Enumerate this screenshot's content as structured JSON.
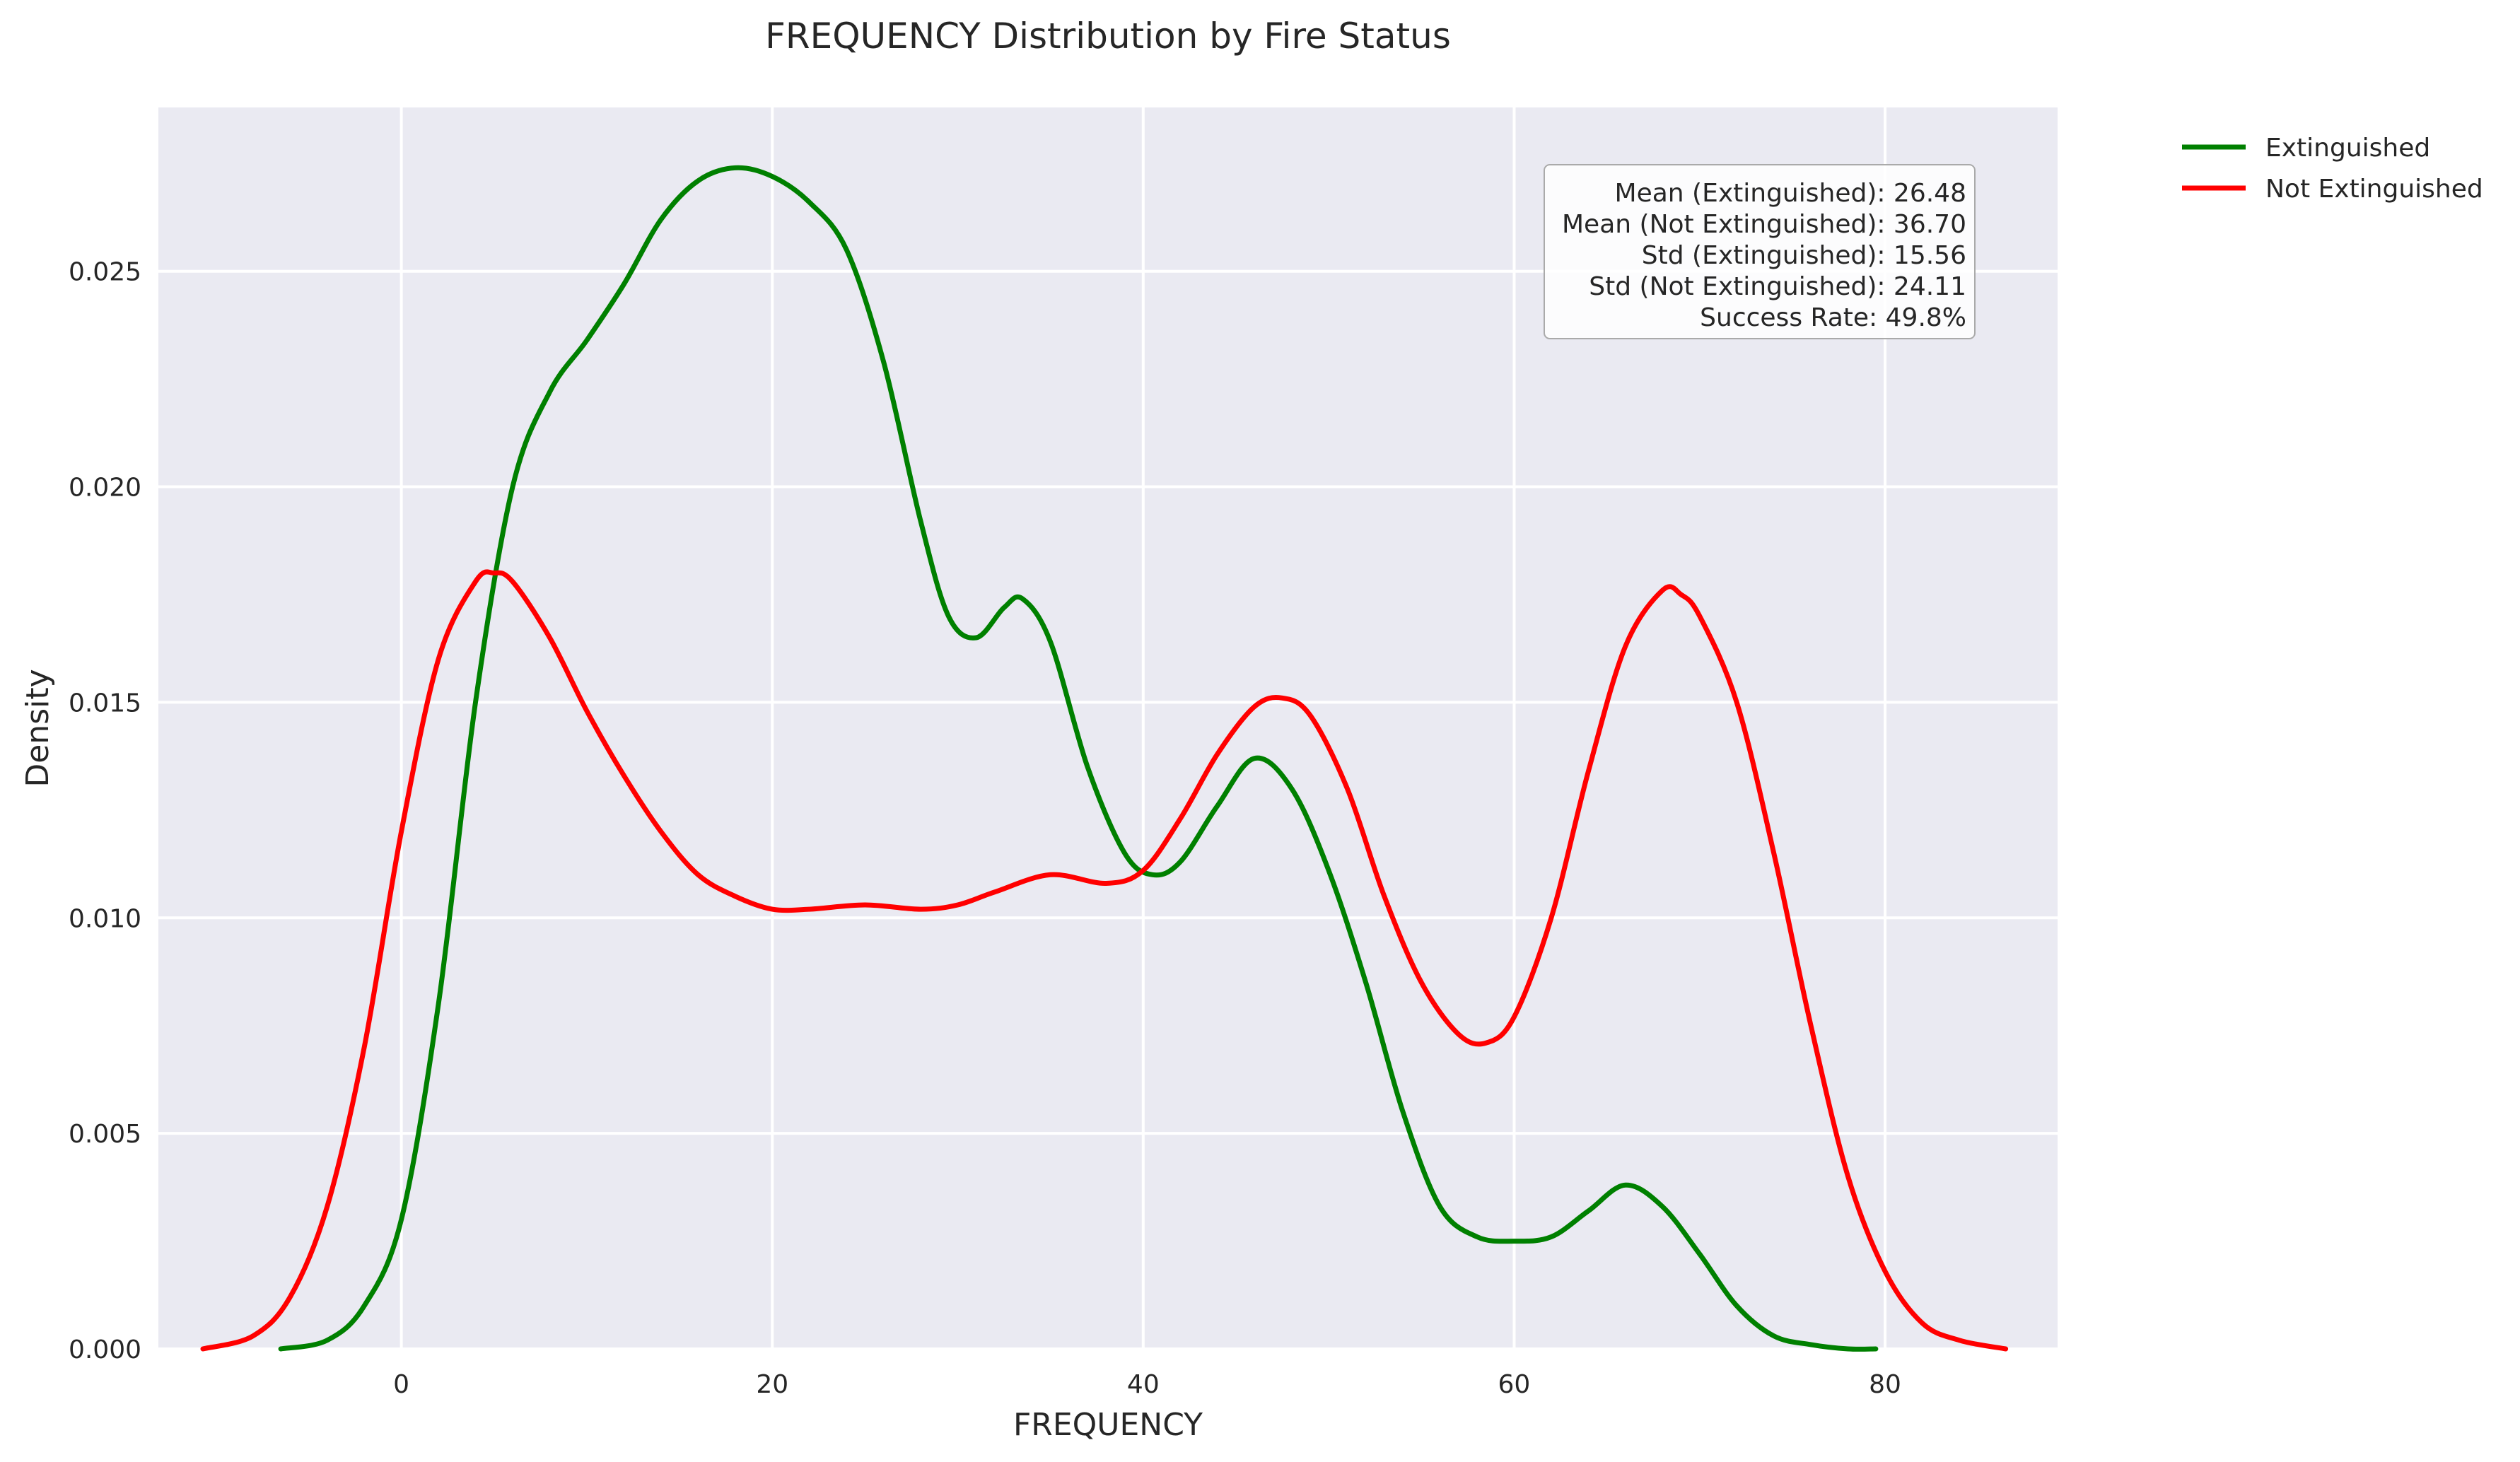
{
  "chart_data": {
    "type": "line",
    "title": "FREQUENCY Distribution by Fire Status",
    "xlabel": "FREQUENCY",
    "ylabel": "Density",
    "xlim": [
      -13.1,
      89.3
    ],
    "ylim": [
      0,
      0.0288
    ],
    "xticks": [
      0,
      20,
      40,
      60,
      80
    ],
    "yticks": [
      0.0,
      0.005,
      0.01,
      0.015,
      0.02,
      0.025
    ],
    "xtick_labels": [
      "0",
      "20",
      "40",
      "60",
      "80"
    ],
    "ytick_labels": [
      "0.000",
      "0.005",
      "0.010",
      "0.015",
      "0.020",
      "0.025"
    ],
    "grid": true,
    "legend_position": "outside-top-right",
    "series": [
      {
        "name": "Extinguished",
        "color": "#008000",
        "x": [
          -6.5,
          -4,
          -2,
          0,
          2,
          4,
          6,
          8,
          10,
          12,
          14,
          16,
          18,
          20,
          22,
          24,
          26,
          28,
          29.5,
          31,
          32.5,
          33.5,
          35,
          37,
          39,
          40.5,
          42,
          44,
          46,
          48,
          50,
          52,
          54,
          56,
          58,
          60,
          62,
          64,
          66,
          68,
          70,
          72,
          74,
          76,
          78,
          79.5
        ],
        "y": [
          0.0,
          0.0002,
          0.001,
          0.003,
          0.008,
          0.015,
          0.02,
          0.0222,
          0.0234,
          0.0247,
          0.0262,
          0.0271,
          0.0274,
          0.0272,
          0.0266,
          0.0255,
          0.0229,
          0.0192,
          0.017,
          0.0165,
          0.0172,
          0.0174,
          0.0164,
          0.0135,
          0.0115,
          0.011,
          0.0113,
          0.0126,
          0.0137,
          0.013,
          0.0111,
          0.0085,
          0.0055,
          0.0033,
          0.0026,
          0.0025,
          0.0026,
          0.0032,
          0.0038,
          0.0033,
          0.0022,
          0.001,
          0.0003,
          0.0001,
          0.0,
          0.0
        ]
      },
      {
        "name": "Not Extinguished",
        "color": "#ff0000",
        "x": [
          -10.7,
          -8,
          -6,
          -4,
          -2,
          0,
          2,
          4,
          5,
          6,
          8,
          10,
          12,
          14,
          16,
          18,
          20,
          22,
          25,
          28,
          30,
          32,
          35,
          38,
          40,
          42,
          44,
          46,
          47.5,
          49,
          51,
          53,
          55,
          57,
          58.5,
          60,
          62,
          64,
          66,
          68,
          69,
          70,
          72,
          74,
          76,
          78,
          80,
          82,
          84,
          86.5
        ],
        "y": [
          0.0,
          0.0003,
          0.0012,
          0.0033,
          0.007,
          0.012,
          0.016,
          0.0178,
          0.018,
          0.0178,
          0.0165,
          0.0148,
          0.0133,
          0.012,
          0.011,
          0.0105,
          0.0102,
          0.0102,
          0.0103,
          0.0102,
          0.0103,
          0.0106,
          0.011,
          0.0108,
          0.0111,
          0.0123,
          0.0138,
          0.0149,
          0.0151,
          0.0147,
          0.013,
          0.0105,
          0.0085,
          0.0073,
          0.0071,
          0.0077,
          0.01,
          0.0134,
          0.0163,
          0.0176,
          0.0175,
          0.017,
          0.015,
          0.0115,
          0.0075,
          0.004,
          0.0018,
          0.0006,
          0.0002,
          0.0
        ]
      }
    ],
    "stats_box": [
      "Mean (Extinguished): 26.48",
      "Mean (Not Extinguished): 36.70",
      "Std (Extinguished): 15.56",
      "Std (Not Extinguished): 24.11",
      "Success Rate: 49.8%"
    ],
    "colors": {
      "plot_background": "#eaeaf2",
      "grid": "#ffffff"
    }
  }
}
